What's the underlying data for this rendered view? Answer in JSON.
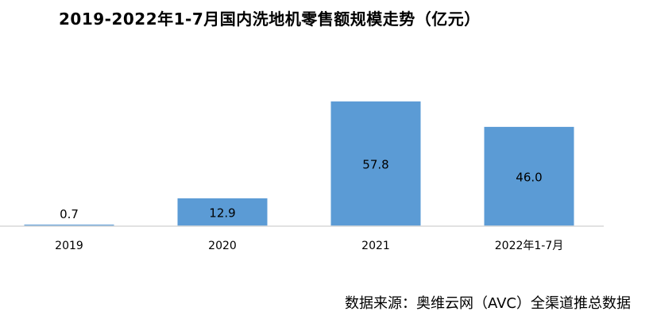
{
  "chart_data": {
    "type": "bar",
    "title": "2019-2022年1-7月国内洗地机零售额规模走势（亿元）",
    "categories": [
      "2019",
      "2020",
      "2021",
      "2022年1-7月"
    ],
    "values": [
      0.7,
      12.9,
      57.8,
      46.0
    ],
    "value_labels": [
      "0.7",
      "12.9",
      "57.8",
      "46.0"
    ],
    "xlabel": "",
    "ylabel": "",
    "ylim": [
      0,
      70
    ],
    "grid": false,
    "legend": "none",
    "colors": {
      "bar": "#5b9bd5",
      "baseline": "#d9d9d9",
      "text": "#000000"
    }
  },
  "footer": {
    "source": "数据来源：奥维云网（AVC）全渠道推总数据"
  }
}
